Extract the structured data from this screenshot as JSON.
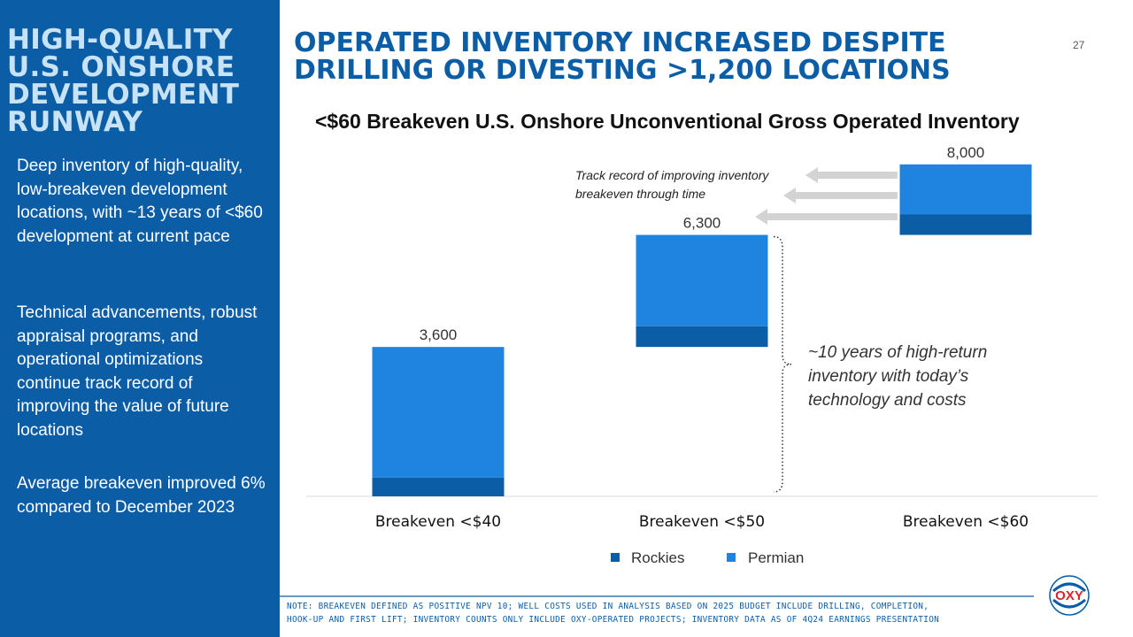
{
  "slide": {
    "page_number": "27",
    "sidebar_title": "HIGH-QUALITY U.S. ONSHORE DEVELOPMENT RUNWAY",
    "paragraphs": [
      "Deep inventory of high-quality, low-breakeven development locations, with ~13 years of <$60 development at current pace",
      "Technical advancements, robust appraisal programs, and operational optimizations continue track record of improving the value of future locations",
      "Average breakeven improved 6% compared to December 2023"
    ],
    "title_line1": "OPERATED INVENTORY INCREASED DESPITE",
    "title_line2": "DRILLING OR DIVESTING >1,200 LOCATIONS",
    "note_line1": "NOTE: BREAKEVEN DEFINED AS POSITIVE NPV 10; WELL COSTS USED IN ANALYSIS BASED ON 2025 BUDGET INCLUDE DRILLING, COMPLETION,",
    "note_line2": "HOOK-UP AND FIRST LIFT; INVENTORY COUNTS ONLY INCLUDE OXY-OPERATED PROJECTS; INVENTORY DATA AS OF 4Q24 EARNINGS PRESENTATION",
    "logo_text": "OXY"
  },
  "chart_data": {
    "type": "bar",
    "subtype": "waterfall-stacked",
    "title": "<$60 Breakeven U.S. Onshore Unconventional Gross Operated Inventory",
    "categories": [
      "Breakeven <$40",
      "Breakeven <$50",
      "Breakeven <$60"
    ],
    "totals": [
      3600,
      6300,
      8000
    ],
    "total_labels": [
      "3,600",
      "6,300",
      "8,000"
    ],
    "series": [
      {
        "name": "Rockies",
        "color": "#0b5ea5",
        "values": [
          450,
          500,
          500
        ]
      },
      {
        "name": "Permian",
        "color": "#1e84df",
        "values": [
          3150,
          2200,
          1200
        ]
      }
    ],
    "ylim": [
      0,
      8000
    ],
    "annotations": {
      "arrows_text": "Track record of improving inventory breakeven through time",
      "brace_text": "~10 years of high-return inventory with today’s technology and costs"
    },
    "legend_position": "bottom",
    "grid": false
  }
}
